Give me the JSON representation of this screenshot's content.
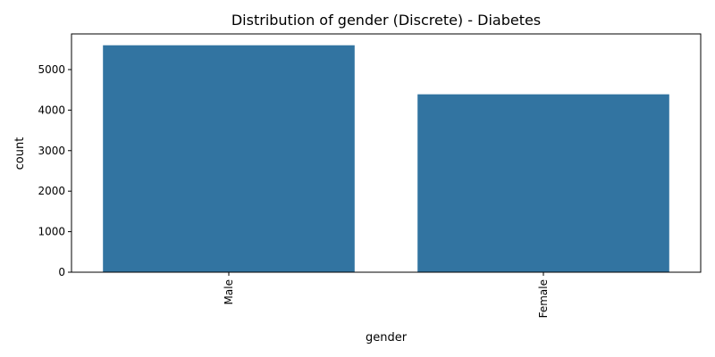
{
  "chart_data": {
    "type": "bar",
    "title": "Distribution of gender (Discrete) - Diabetes",
    "xlabel": "gender",
    "ylabel": "count",
    "categories": [
      "Male",
      "Female"
    ],
    "values": [
      5600,
      4390
    ],
    "ylim": [
      0,
      5880
    ],
    "yticks": [
      0,
      1000,
      2000,
      3000,
      4000,
      5000
    ],
    "ytick_labels": [
      "0",
      "1000",
      "2000",
      "3000",
      "4000",
      "5000"
    ],
    "bar_color": "#3274a1",
    "grid": false,
    "legend": "none",
    "xtick_rotation": "vertical"
  }
}
